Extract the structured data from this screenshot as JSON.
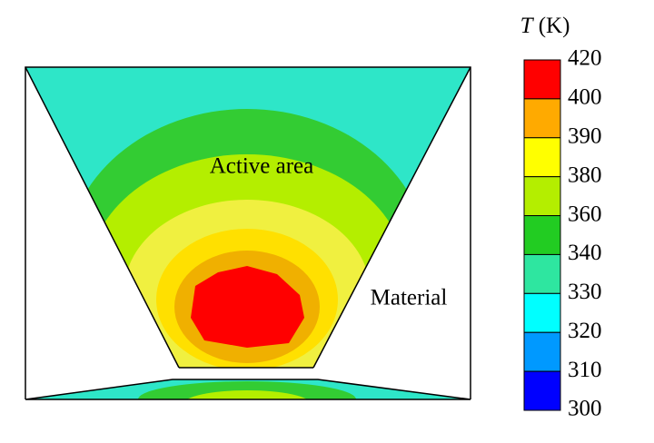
{
  "figure": {
    "labels": {
      "active_area": "Active area",
      "material": "Material"
    },
    "colorbar": {
      "symbol": "T",
      "unit": "(K)",
      "levels": [
        "420",
        "400",
        "390",
        "380",
        "360",
        "340",
        "330",
        "320",
        "310",
        "300"
      ],
      "colors": [
        "#ff0000",
        "#ffaa00",
        "#ffff00",
        "#b4ee00",
        "#22cc22",
        "#2ee6a0",
        "#00ffff",
        "#0099ff",
        "#0000ff"
      ]
    }
  }
}
